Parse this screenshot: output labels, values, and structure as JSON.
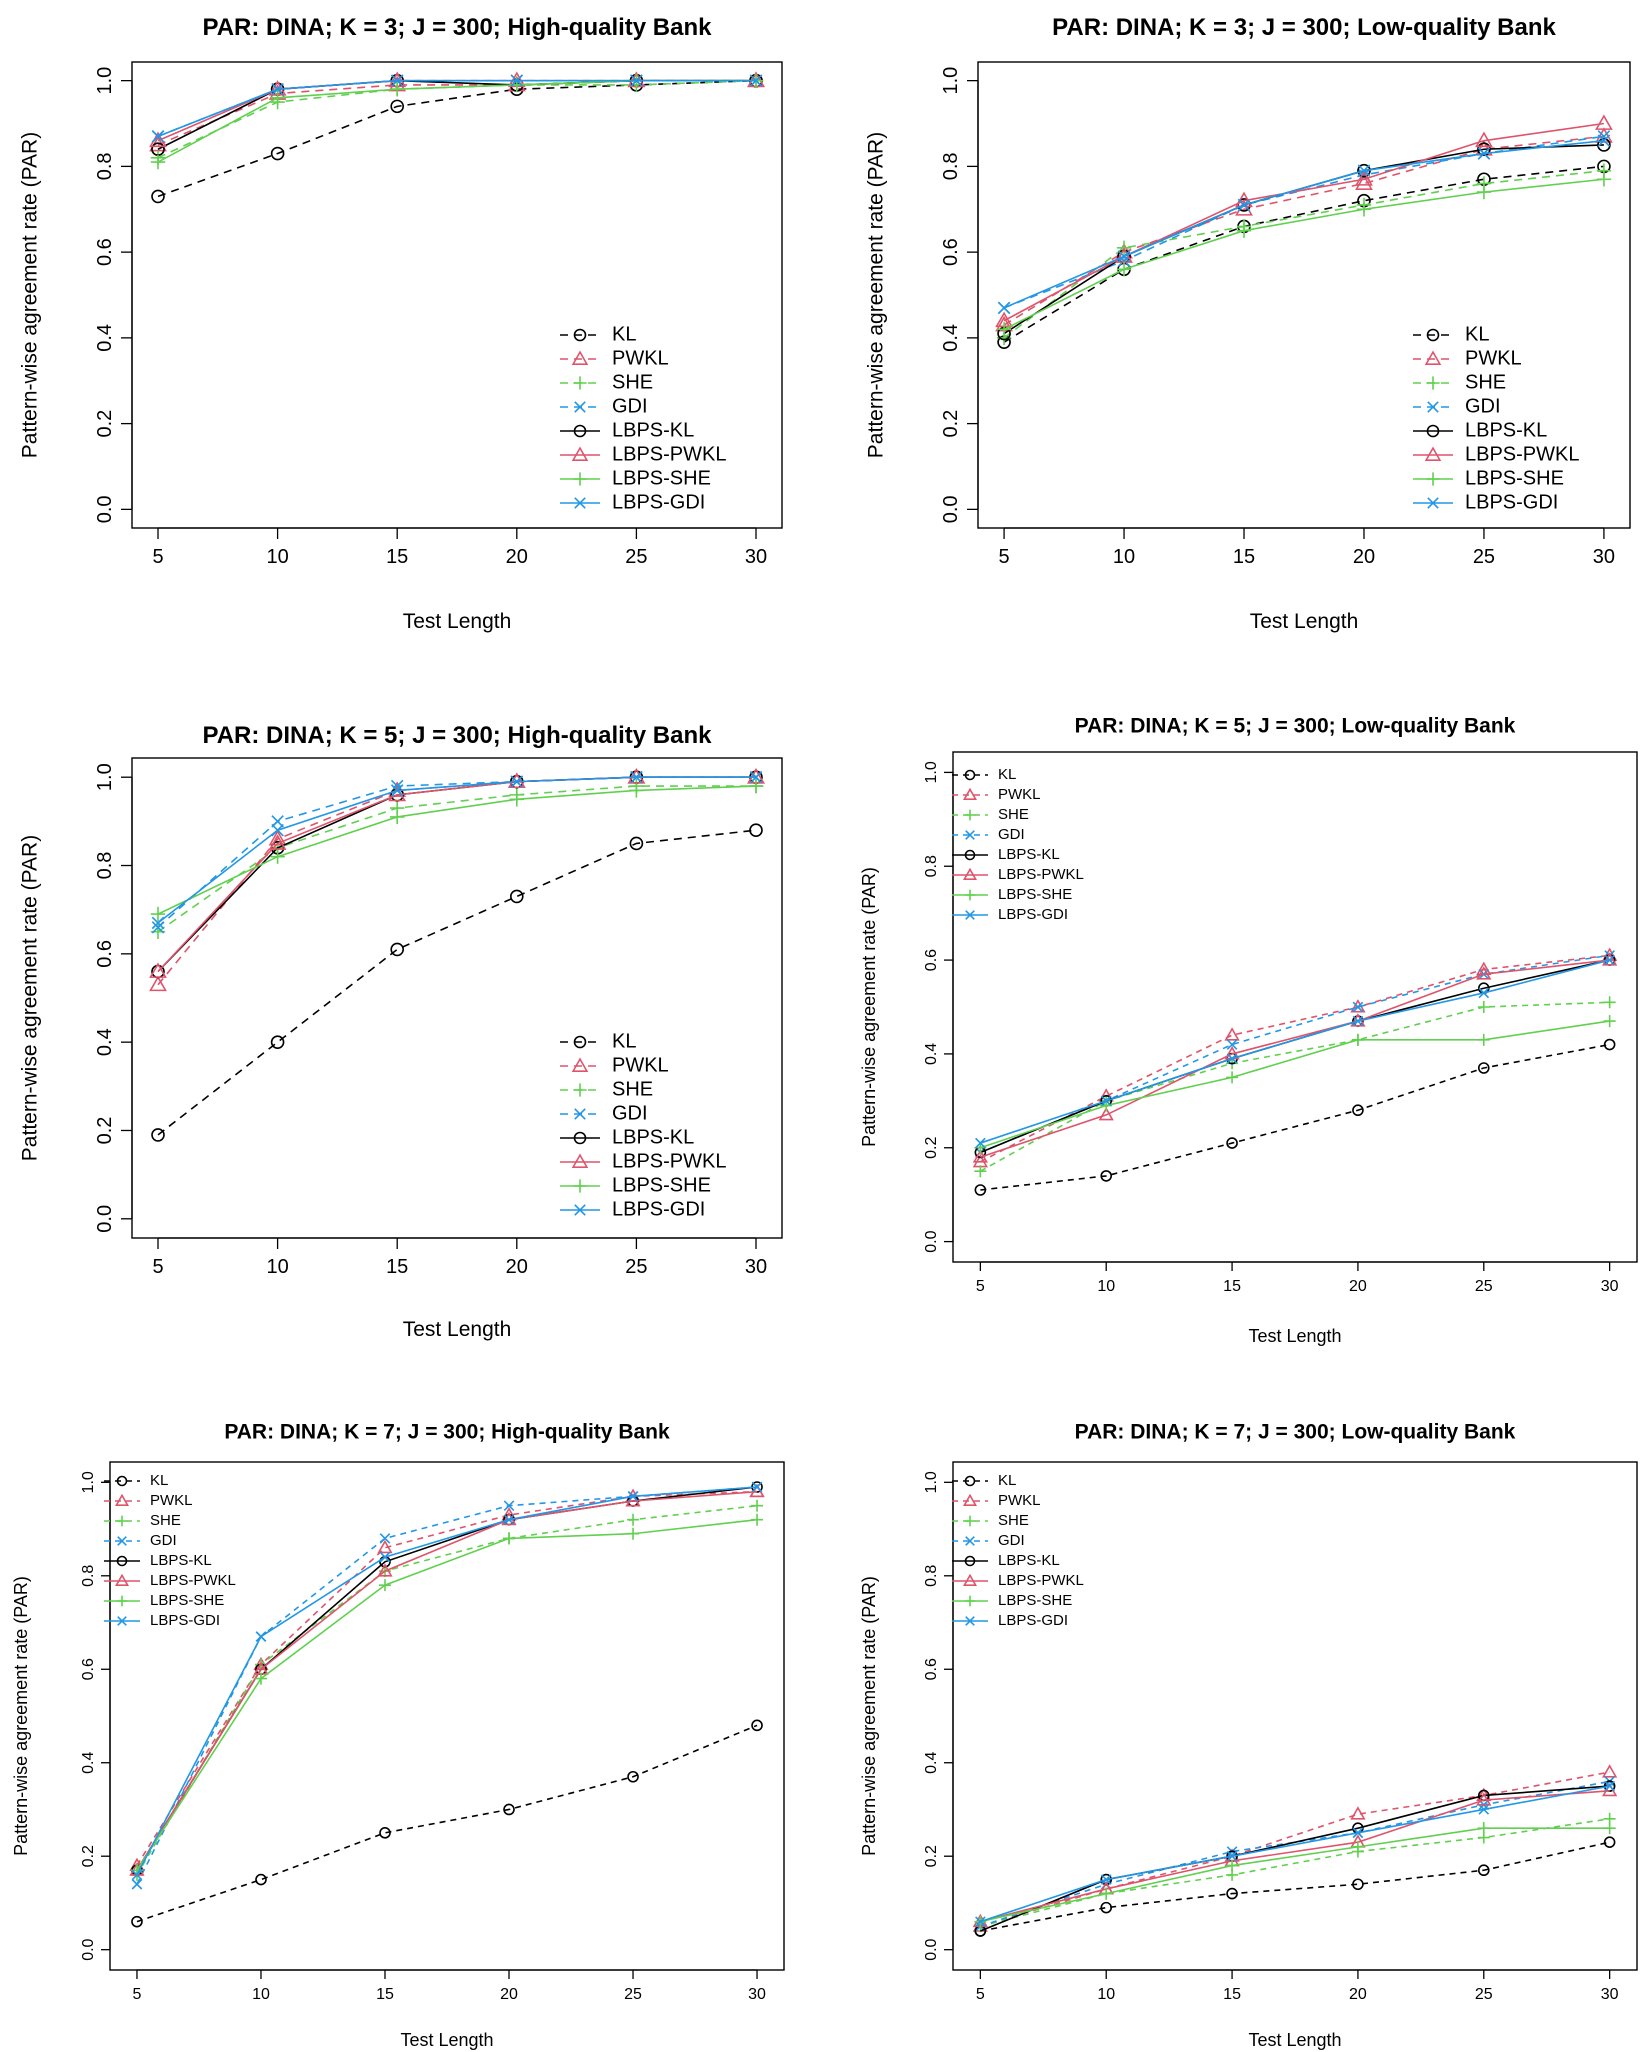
{
  "series_styles": [
    {
      "key": "KL",
      "label": "KL",
      "color": "#000000",
      "dashed": true,
      "marker": "circle"
    },
    {
      "key": "PWKL",
      "label": "PWKL",
      "color": "#df536b",
      "dashed": true,
      "marker": "triangle"
    },
    {
      "key": "SHE",
      "label": "SHE",
      "color": "#61d04f",
      "dashed": true,
      "marker": "plus"
    },
    {
      "key": "GDI",
      "label": "GDI",
      "color": "#2297e6",
      "dashed": true,
      "marker": "cross"
    },
    {
      "key": "LBPS-KL",
      "label": "LBPS-KL",
      "color": "#000000",
      "dashed": false,
      "marker": "circle"
    },
    {
      "key": "LBPS-PWKL",
      "label": "LBPS-PWKL",
      "color": "#df536b",
      "dashed": false,
      "marker": "triangle"
    },
    {
      "key": "LBPS-SHE",
      "label": "LBPS-SHE",
      "color": "#61d04f",
      "dashed": false,
      "marker": "plus"
    },
    {
      "key": "LBPS-GDI",
      "label": "LBPS-GDI",
      "color": "#2297e6",
      "dashed": false,
      "marker": "cross"
    }
  ],
  "chart_data": [
    {
      "type": "line",
      "title": "PAR: DINA; K = 3; J = 300; High-quality Bank",
      "xlabel": "Test Length",
      "ylabel": "Pattern-wise agreement rate (PAR)",
      "x": [
        5,
        10,
        15,
        20,
        25,
        30
      ],
      "xticks": [
        "5",
        "10",
        "15",
        "20",
        "25",
        "30"
      ],
      "yticks": [
        "0.0",
        "0.2",
        "0.4",
        "0.6",
        "0.8",
        "1.0"
      ],
      "ylim": [
        0,
        1
      ],
      "legend": "bottom-right",
      "series": [
        {
          "name": "KL",
          "values": [
            0.73,
            0.83,
            0.94,
            0.98,
            0.99,
            1.0
          ]
        },
        {
          "name": "PWKL",
          "values": [
            0.85,
            0.97,
            0.99,
            0.99,
            1.0,
            1.0
          ]
        },
        {
          "name": "SHE",
          "values": [
            0.82,
            0.95,
            0.98,
            0.99,
            0.99,
            1.0
          ]
        },
        {
          "name": "GDI",
          "values": [
            0.87,
            0.98,
            1.0,
            1.0,
            1.0,
            1.0
          ]
        },
        {
          "name": "LBPS-KL",
          "values": [
            0.84,
            0.98,
            1.0,
            0.99,
            1.0,
            1.0
          ]
        },
        {
          "name": "LBPS-PWKL",
          "values": [
            0.86,
            0.98,
            1.0,
            1.0,
            1.0,
            1.0
          ]
        },
        {
          "name": "LBPS-SHE",
          "values": [
            0.81,
            0.96,
            0.98,
            0.99,
            1.0,
            1.0
          ]
        },
        {
          "name": "LBPS-GDI",
          "values": [
            0.87,
            0.98,
            1.0,
            1.0,
            1.0,
            1.0
          ]
        }
      ]
    },
    {
      "type": "line",
      "title": "PAR: DINA; K = 3; J = 300; Low-quality Bank",
      "xlabel": "Test Length",
      "ylabel": "Pattern-wise agreement rate (PAR)",
      "x": [
        5,
        10,
        15,
        20,
        25,
        30
      ],
      "xticks": [
        "5",
        "10",
        "15",
        "20",
        "25",
        "30"
      ],
      "yticks": [
        "0.0",
        "0.2",
        "0.4",
        "0.6",
        "0.8",
        "1.0"
      ],
      "ylim": [
        0,
        1
      ],
      "legend": "bottom-right",
      "series": [
        {
          "name": "KL",
          "values": [
            0.39,
            0.56,
            0.66,
            0.72,
            0.77,
            0.8
          ]
        },
        {
          "name": "PWKL",
          "values": [
            0.43,
            0.6,
            0.7,
            0.76,
            0.84,
            0.87
          ]
        },
        {
          "name": "SHE",
          "values": [
            0.4,
            0.61,
            0.66,
            0.71,
            0.76,
            0.79
          ]
        },
        {
          "name": "GDI",
          "values": [
            0.47,
            0.58,
            0.71,
            0.78,
            0.83,
            0.87
          ]
        },
        {
          "name": "LBPS-KL",
          "values": [
            0.41,
            0.59,
            0.71,
            0.79,
            0.84,
            0.85
          ]
        },
        {
          "name": "LBPS-PWKL",
          "values": [
            0.44,
            0.59,
            0.72,
            0.77,
            0.86,
            0.9
          ]
        },
        {
          "name": "LBPS-SHE",
          "values": [
            0.42,
            0.56,
            0.65,
            0.7,
            0.74,
            0.77
          ]
        },
        {
          "name": "LBPS-GDI",
          "values": [
            0.47,
            0.59,
            0.71,
            0.79,
            0.83,
            0.86
          ]
        }
      ]
    },
    {
      "type": "line",
      "title": "PAR: DINA; K = 5; J = 300; High-quality Bank",
      "xlabel": "Test Length",
      "ylabel": "Pattern-wise agreement rate (PAR)",
      "x": [
        5,
        10,
        15,
        20,
        25,
        30
      ],
      "xticks": [
        "5",
        "10",
        "15",
        "20",
        "25",
        "30"
      ],
      "yticks": [
        "0.0",
        "0.2",
        "0.4",
        "0.6",
        "0.8",
        "1.0"
      ],
      "ylim": [
        0,
        1
      ],
      "legend": "bottom-right",
      "series": [
        {
          "name": "KL",
          "values": [
            0.19,
            0.4,
            0.61,
            0.73,
            0.85,
            0.88
          ]
        },
        {
          "name": "PWKL",
          "values": [
            0.53,
            0.86,
            0.97,
            0.99,
            1.0,
            1.0
          ]
        },
        {
          "name": "SHE",
          "values": [
            0.65,
            0.84,
            0.93,
            0.96,
            0.98,
            0.98
          ]
        },
        {
          "name": "GDI",
          "values": [
            0.66,
            0.9,
            0.98,
            0.99,
            1.0,
            1.0
          ]
        },
        {
          "name": "LBPS-KL",
          "values": [
            0.56,
            0.84,
            0.96,
            0.99,
            1.0,
            1.0
          ]
        },
        {
          "name": "LBPS-PWKL",
          "values": [
            0.56,
            0.85,
            0.96,
            0.99,
            1.0,
            1.0
          ]
        },
        {
          "name": "LBPS-SHE",
          "values": [
            0.69,
            0.82,
            0.91,
            0.95,
            0.97,
            0.98
          ]
        },
        {
          "name": "LBPS-GDI",
          "values": [
            0.67,
            0.88,
            0.97,
            0.99,
            1.0,
            1.0
          ]
        }
      ]
    },
    {
      "type": "line",
      "title": "PAR: DINA; K = 5; J = 300; Low-quality Bank",
      "xlabel": "Test Length",
      "ylabel": "Pattern-wise agreement rate (PAR)",
      "x": [
        5,
        10,
        15,
        20,
        25,
        30
      ],
      "xticks": [
        "5",
        "10",
        "15",
        "20",
        "25",
        "30"
      ],
      "yticks": [
        "0.0",
        "0.2",
        "0.4",
        "0.6",
        "0.8",
        "1.0"
      ],
      "ylim": [
        0,
        1
      ],
      "legend": "top-left",
      "series": [
        {
          "name": "KL",
          "values": [
            0.11,
            0.14,
            0.21,
            0.28,
            0.37,
            0.42
          ]
        },
        {
          "name": "PWKL",
          "values": [
            0.17,
            0.31,
            0.44,
            0.5,
            0.58,
            0.61
          ]
        },
        {
          "name": "SHE",
          "values": [
            0.15,
            0.3,
            0.38,
            0.43,
            0.5,
            0.51
          ]
        },
        {
          "name": "GDI",
          "values": [
            0.19,
            0.3,
            0.42,
            0.5,
            0.57,
            0.61
          ]
        },
        {
          "name": "LBPS-KL",
          "values": [
            0.19,
            0.3,
            0.39,
            0.47,
            0.54,
            0.6
          ]
        },
        {
          "name": "LBPS-PWKL",
          "values": [
            0.18,
            0.27,
            0.4,
            0.47,
            0.57,
            0.6
          ]
        },
        {
          "name": "LBPS-SHE",
          "values": [
            0.2,
            0.29,
            0.35,
            0.43,
            0.43,
            0.47
          ]
        },
        {
          "name": "LBPS-GDI",
          "values": [
            0.21,
            0.3,
            0.39,
            0.47,
            0.53,
            0.6
          ]
        }
      ]
    },
    {
      "type": "line",
      "title": "PAR: DINA; K = 7; J = 300; High-quality Bank",
      "xlabel": "Test Length",
      "ylabel": "Pattern-wise agreement rate (PAR)",
      "x": [
        5,
        10,
        15,
        20,
        25,
        30
      ],
      "xticks": [
        "5",
        "10",
        "15",
        "20",
        "25",
        "30"
      ],
      "yticks": [
        "0.0",
        "0.2",
        "0.4",
        "0.6",
        "0.8",
        "1.0"
      ],
      "ylim": [
        0,
        1
      ],
      "legend": "top-left",
      "series": [
        {
          "name": "KL",
          "values": [
            0.06,
            0.15,
            0.25,
            0.3,
            0.37,
            0.48
          ]
        },
        {
          "name": "PWKL",
          "values": [
            0.18,
            0.61,
            0.86,
            0.93,
            0.97,
            0.98
          ]
        },
        {
          "name": "SHE",
          "values": [
            0.16,
            0.61,
            0.81,
            0.88,
            0.92,
            0.95
          ]
        },
        {
          "name": "GDI",
          "values": [
            0.14,
            0.67,
            0.88,
            0.95,
            0.97,
            0.99
          ]
        },
        {
          "name": "LBPS-KL",
          "values": [
            0.17,
            0.6,
            0.83,
            0.92,
            0.96,
            0.99
          ]
        },
        {
          "name": "LBPS-PWKL",
          "values": [
            0.17,
            0.6,
            0.81,
            0.92,
            0.96,
            0.98
          ]
        },
        {
          "name": "LBPS-SHE",
          "values": [
            0.17,
            0.58,
            0.78,
            0.88,
            0.89,
            0.92
          ]
        },
        {
          "name": "LBPS-GDI",
          "values": [
            0.16,
            0.67,
            0.84,
            0.92,
            0.97,
            0.99
          ]
        }
      ]
    },
    {
      "type": "line",
      "title": "PAR: DINA; K = 7; J = 300; Low-quality Bank",
      "xlabel": "Test Length",
      "ylabel": "Pattern-wise agreement rate (PAR)",
      "x": [
        5,
        10,
        15,
        20,
        25,
        30
      ],
      "xticks": [
        "5",
        "10",
        "15",
        "20",
        "25",
        "30"
      ],
      "yticks": [
        "0.0",
        "0.2",
        "0.4",
        "0.6",
        "0.8",
        "1.0"
      ],
      "ylim": [
        0,
        1
      ],
      "legend": "top-left",
      "series": [
        {
          "name": "KL",
          "values": [
            0.04,
            0.09,
            0.12,
            0.14,
            0.17,
            0.23
          ]
        },
        {
          "name": "PWKL",
          "values": [
            0.05,
            0.13,
            0.2,
            0.29,
            0.33,
            0.38
          ]
        },
        {
          "name": "SHE",
          "values": [
            0.05,
            0.12,
            0.16,
            0.21,
            0.24,
            0.28
          ]
        },
        {
          "name": "GDI",
          "values": [
            0.05,
            0.14,
            0.21,
            0.25,
            0.31,
            0.36
          ]
        },
        {
          "name": "LBPS-KL",
          "values": [
            0.04,
            0.15,
            0.2,
            0.26,
            0.33,
            0.35
          ]
        },
        {
          "name": "LBPS-PWKL",
          "values": [
            0.06,
            0.13,
            0.19,
            0.23,
            0.32,
            0.34
          ]
        },
        {
          "name": "LBPS-SHE",
          "values": [
            0.06,
            0.12,
            0.18,
            0.22,
            0.26,
            0.26
          ]
        },
        {
          "name": "LBPS-GDI",
          "values": [
            0.06,
            0.15,
            0.2,
            0.25,
            0.3,
            0.35
          ]
        }
      ]
    }
  ]
}
